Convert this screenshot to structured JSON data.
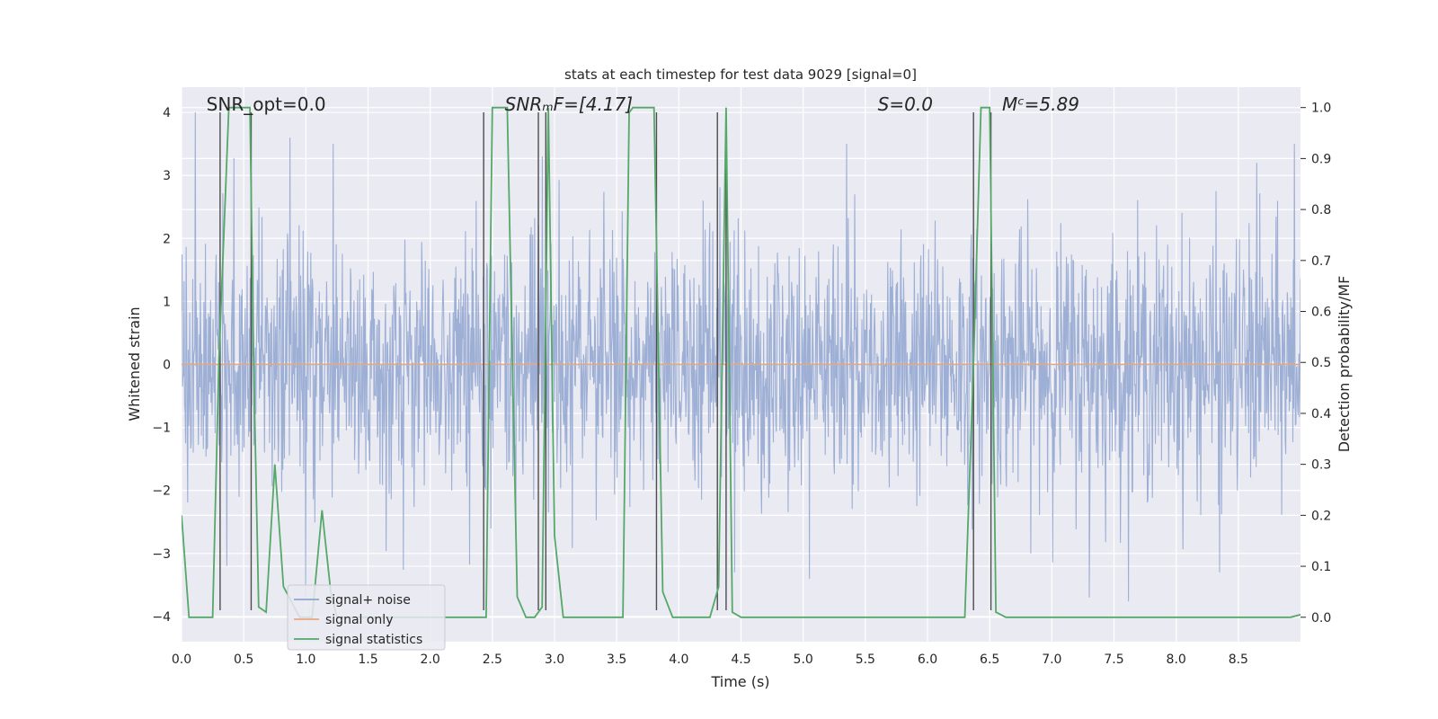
{
  "chart_data": {
    "type": "line",
    "title": "stats at each timestep for test data 9029 [signal=0]",
    "xlabel": "Time (s)",
    "ylabel": "Whitened strain",
    "y2label": "Detection probability/MF",
    "xlim": [
      0.0,
      9.0
    ],
    "ylim": [
      -4.4,
      4.4
    ],
    "y2lim": [
      -0.048,
      1.04
    ],
    "x_ticks": [
      0.0,
      0.5,
      1.0,
      1.5,
      2.0,
      2.5,
      3.0,
      3.5,
      4.0,
      4.5,
      5.0,
      5.5,
      6.0,
      6.5,
      7.0,
      7.5,
      8.0,
      8.5
    ],
    "x_tick_labels": [
      "0.0",
      "0.5",
      "1.0",
      "1.5",
      "2.0",
      "2.5",
      "3.0",
      "3.5",
      "4.0",
      "4.5",
      "5.0",
      "5.5",
      "6.0",
      "6.5",
      "7.0",
      "7.5",
      "8.0",
      "8.5"
    ],
    "y_ticks": [
      -4,
      -3,
      -2,
      -1,
      0,
      1,
      2,
      3,
      4
    ],
    "y_tick_labels": [
      "−4",
      "−3",
      "−2",
      "−1",
      "0",
      "1",
      "2",
      "3",
      "4"
    ],
    "y2_ticks": [
      0.0,
      0.1,
      0.2,
      0.3,
      0.4,
      0.5,
      0.6,
      0.7,
      0.8,
      0.9,
      1.0
    ],
    "y2_tick_labels": [
      "0.0",
      "0.1",
      "0.2",
      "0.3",
      "0.4",
      "0.5",
      "0.6",
      "0.7",
      "0.8",
      "0.9",
      "1.0"
    ],
    "grid": true,
    "legend": {
      "placement": "lower-left",
      "entries": [
        {
          "label": "signal+ noise",
          "color": "#8fa5d0"
        },
        {
          "label": "signal only",
          "color": "#e8a77f"
        },
        {
          "label": "signal statistics",
          "color": "#55a868"
        }
      ]
    },
    "annotations": [
      {
        "text": "SNR_opt=0.0",
        "x": 0.2,
        "y": 4.1
      },
      {
        "text": "SNRₘF=[4.17]",
        "x": 2.6,
        "y": 4.1
      },
      {
        "text": "S=0.0",
        "x": 5.6,
        "y": 4.1
      },
      {
        "text": "Mᶜ=5.89",
        "x": 6.6,
        "y": 4.1
      }
    ],
    "series": [
      {
        "name": "signal+ noise",
        "color": "#8fa5d0",
        "amplitude_envelope": {
          "p05": -1.6,
          "p95": 1.7,
          "max": 4.0,
          "min": -3.9
        },
        "notable_peaks": [
          [
            0.11,
            4.0
          ],
          [
            0.87,
            3.6
          ],
          [
            1.22,
            3.5
          ],
          [
            2.9,
            3.3
          ],
          [
            5.35,
            3.5
          ],
          [
            8.95,
            3.5
          ],
          [
            8.65,
            3.2
          ],
          [
            1.0,
            -3.7
          ],
          [
            4.45,
            -3.3
          ],
          [
            5.05,
            -3.4
          ],
          [
            7.3,
            -3.7
          ],
          [
            8.35,
            -3.3
          ]
        ]
      },
      {
        "name": "signal only",
        "color": "#e8a77f",
        "x": [
          0.0,
          9.0
        ],
        "y": [
          0.0,
          0.0
        ]
      },
      {
        "name": "signal statistics",
        "color": "#55a868",
        "axis": "right",
        "x": [
          0.0,
          0.06,
          0.25,
          0.3,
          0.38,
          0.55,
          0.58,
          0.62,
          0.68,
          0.75,
          0.82,
          0.95,
          1.05,
          1.13,
          1.2,
          1.25,
          2.4,
          2.45,
          2.5,
          2.62,
          2.7,
          2.77,
          2.84,
          2.9,
          2.95,
          3.0,
          3.07,
          3.55,
          3.6,
          3.63,
          3.8,
          3.87,
          3.95,
          4.25,
          4.32,
          4.38,
          4.43,
          4.5,
          6.3,
          6.37,
          6.43,
          6.5,
          6.55,
          6.63,
          8.92,
          9.0
        ],
        "y": [
          0.2,
          0.0,
          0.0,
          0.5,
          1.0,
          1.0,
          0.5,
          0.02,
          0.01,
          0.3,
          0.06,
          0.0,
          0.0,
          0.21,
          0.05,
          0.0,
          0.0,
          0.0,
          1.0,
          1.0,
          0.04,
          0.0,
          0.0,
          0.02,
          1.0,
          0.16,
          0.0,
          0.0,
          0.99,
          1.0,
          1.0,
          0.05,
          0.0,
          0.0,
          0.06,
          1.0,
          0.01,
          0.0,
          0.0,
          0.5,
          1.0,
          1.0,
          0.01,
          0.0,
          0.0,
          0.005
        ]
      }
    ],
    "vertical_markers": [
      0.31,
      0.56,
      2.43,
      2.87,
      2.93,
      3.82,
      4.31,
      4.38,
      6.37,
      6.51
    ]
  }
}
